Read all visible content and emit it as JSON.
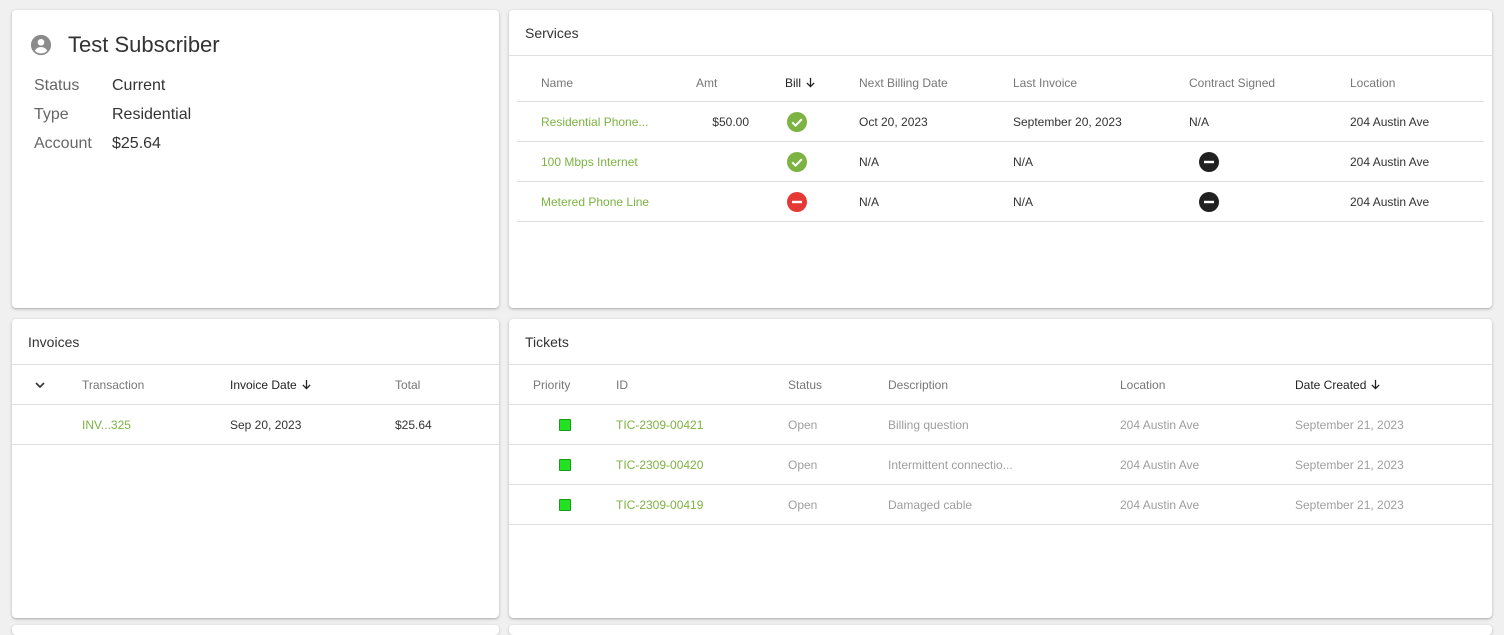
{
  "subscriber": {
    "name": "Test Subscriber",
    "icon": "account-circle-icon",
    "fields": [
      {
        "label": "Status",
        "value": "Current"
      },
      {
        "label": "Type",
        "value": "Residential"
      },
      {
        "label": "Account",
        "value": "$25.64"
      }
    ]
  },
  "services": {
    "title": "Services",
    "columns": {
      "name": "Name",
      "amt": "Amt",
      "bill": "Bill",
      "next_billing": "Next Billing Date",
      "last_invoice": "Last Invoice",
      "contract": "Contract Signed",
      "location": "Location"
    },
    "sorted_column": "bill",
    "rows": [
      {
        "name": "Residential Phone...",
        "amt": "$50.00",
        "bill": "check",
        "next_billing": "Oct 20, 2023",
        "last_invoice": "September 20, 2023",
        "contract": "N/A",
        "location": "204 Austin Ave"
      },
      {
        "name": "100 Mbps Internet",
        "amt": "",
        "bill": "check",
        "next_billing": "N/A",
        "last_invoice": "N/A",
        "contract": "minus",
        "location": "204 Austin Ave"
      },
      {
        "name": "Metered Phone Line",
        "amt": "",
        "bill": "remove",
        "next_billing": "N/A",
        "last_invoice": "N/A",
        "contract": "minus",
        "location": "204 Austin Ave"
      }
    ]
  },
  "invoices": {
    "title": "Invoices",
    "columns": {
      "transaction": "Transaction",
      "invoice_date": "Invoice Date",
      "total": "Total"
    },
    "sorted_column": "invoice_date",
    "rows": [
      {
        "transaction": "INV...325",
        "invoice_date": "Sep 20, 2023",
        "total": "$25.64"
      }
    ]
  },
  "tickets": {
    "title": "Tickets",
    "columns": {
      "priority": "Priority",
      "id": "ID",
      "status": "Status",
      "description": "Description",
      "location": "Location",
      "date_created": "Date Created"
    },
    "sorted_column": "date_created",
    "rows": [
      {
        "id": "TIC-2309-00421",
        "status": "Open",
        "description": "Billing question",
        "location": "204 Austin Ave",
        "date_created": "September 21, 2023"
      },
      {
        "id": "TIC-2309-00420",
        "status": "Open",
        "description": "Intermittent connectio...",
        "location": "204 Austin Ave",
        "date_created": "September 21, 2023"
      },
      {
        "id": "TIC-2309-00419",
        "status": "Open",
        "description": "Damaged cable",
        "location": "204 Austin Ave",
        "date_created": "September 21, 2023"
      }
    ]
  },
  "colors": {
    "link": "#7cb342",
    "check": "#7cb342",
    "remove": "#e53935",
    "minus": "#212121",
    "priority_low": "#22e322"
  }
}
